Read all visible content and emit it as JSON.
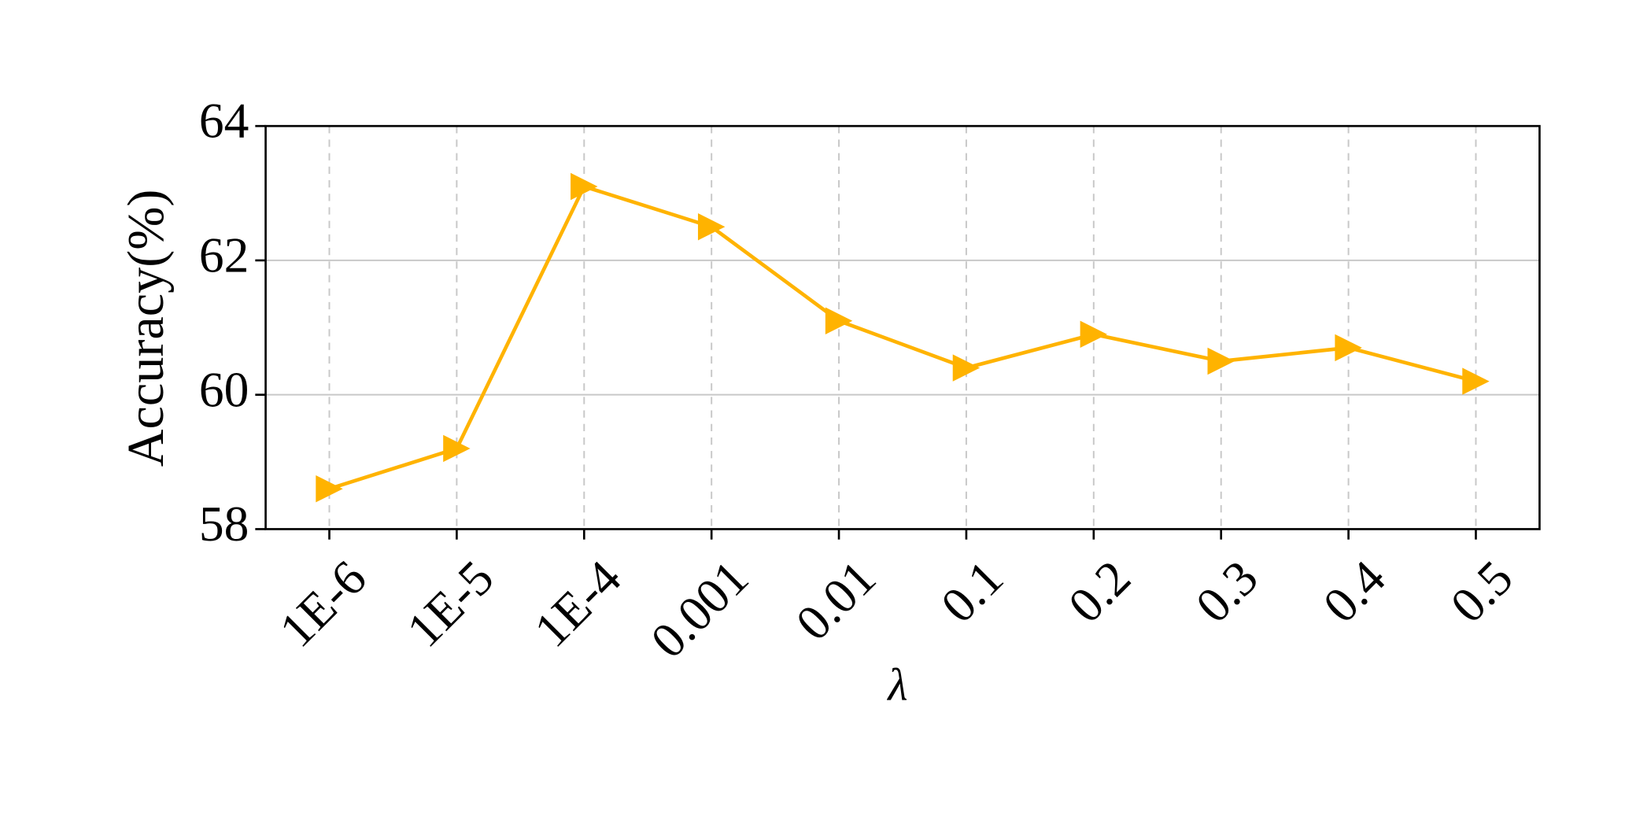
{
  "chart_data": {
    "type": "line",
    "x_label": "λ",
    "y_label": "Accuracy(%)",
    "categories": [
      "1E-6",
      "1E-5",
      "1E-4",
      "0.001",
      "0.01",
      "0.1",
      "0.2",
      "0.3",
      "0.4",
      "0.5"
    ],
    "values": [
      58.6,
      59.2,
      63.1,
      62.5,
      61.1,
      60.4,
      60.9,
      60.5,
      60.7,
      60.2
    ],
    "color": "#FFB300",
    "ylim": [
      58,
      64
    ],
    "yticks": [
      58,
      60,
      62,
      64
    ],
    "grid": true
  }
}
